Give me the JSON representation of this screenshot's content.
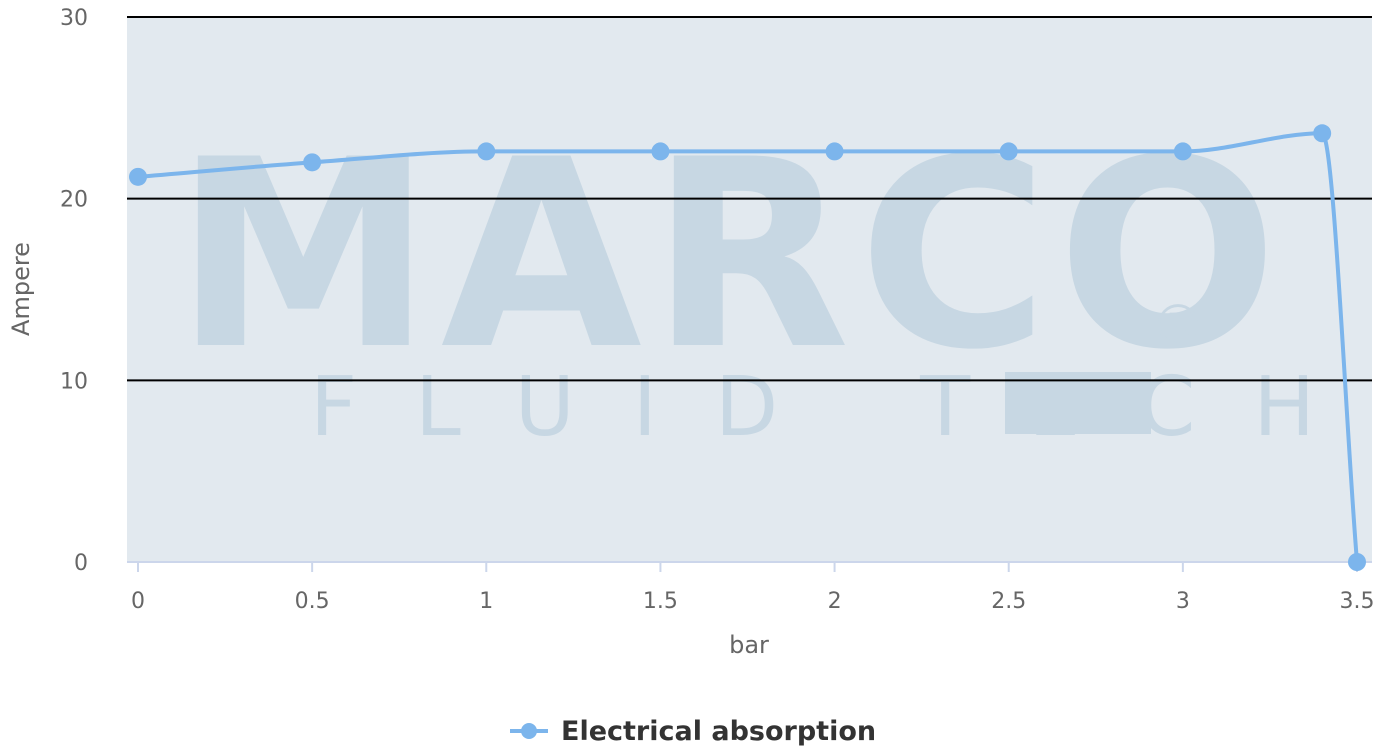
{
  "chart_data": {
    "type": "line",
    "title": "",
    "xlabel": "bar",
    "ylabel": "Ampere",
    "x": [
      0,
      0.5,
      1,
      1.5,
      2,
      2.5,
      3,
      3.4,
      3.5
    ],
    "series": [
      {
        "name": "Electrical absorption",
        "values": [
          21.2,
          22.0,
          22.6,
          22.6,
          22.6,
          22.6,
          22.6,
          23.6,
          0
        ],
        "color": "#7cb5ec"
      }
    ],
    "xlim": [
      0,
      3.5
    ],
    "ylim": [
      0,
      30
    ],
    "x_ticks": [
      "0",
      "0.5",
      "1",
      "1.5",
      "2",
      "2.5",
      "3",
      "3.5"
    ],
    "y_ticks": [
      "0",
      "10",
      "20",
      "30"
    ],
    "grid": true,
    "legend_position": "bottom-center",
    "plot_background": "#e2e9ef",
    "watermark": {
      "line1": "MARCO",
      "registered_mark": "®",
      "line2": "FLUID TECH",
      "color": "#c7d7e3"
    }
  }
}
